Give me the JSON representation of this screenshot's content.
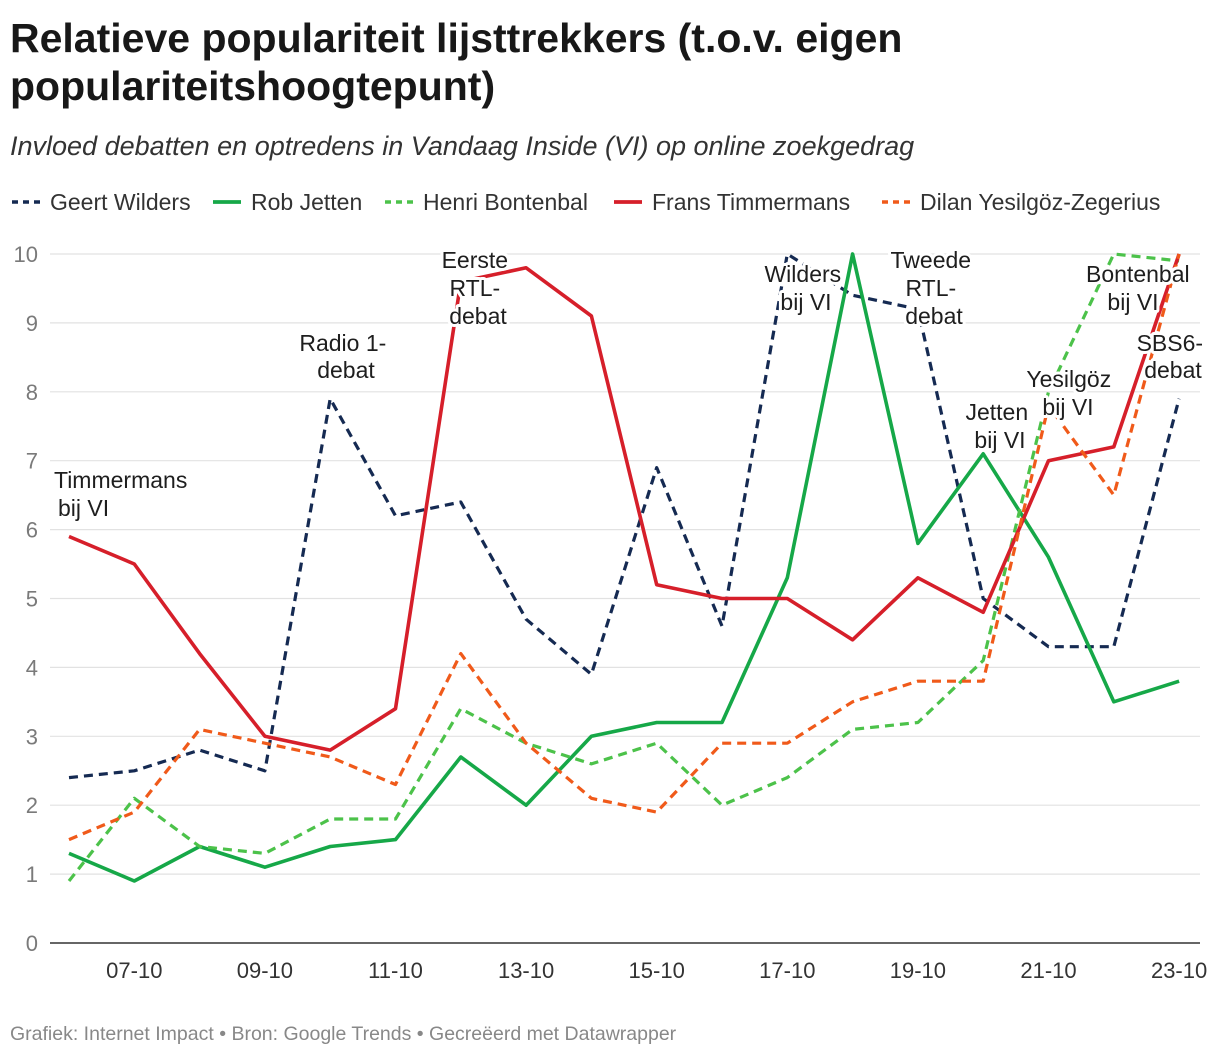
{
  "chart_data": {
    "type": "line",
    "title": "Relatieve populariteit lijsttrekkers (t.o.v. eigen populariteitshoogtepunt)",
    "subtitle": "Invloed debatten en optredens in Vandaag Inside (VI) op online zoekgedrag",
    "xlabel": "",
    "ylabel": "",
    "x": [
      6,
      7,
      8,
      9,
      10,
      11,
      12,
      13,
      14,
      15,
      16,
      17,
      18,
      19,
      20,
      21,
      22,
      23
    ],
    "x_ticks": [
      {
        "day": 7,
        "label": "07-10"
      },
      {
        "day": 9,
        "label": "09-10"
      },
      {
        "day": 11,
        "label": "11-10"
      },
      {
        "day": 13,
        "label": "13-10"
      },
      {
        "day": 15,
        "label": "15-10"
      },
      {
        "day": 17,
        "label": "17-10"
      },
      {
        "day": 19,
        "label": "19-10"
      },
      {
        "day": 21,
        "label": "21-10"
      },
      {
        "day": 23,
        "label": "23-10"
      }
    ],
    "ylim": [
      0,
      10
    ],
    "y_ticks": [
      0,
      1,
      2,
      3,
      4,
      5,
      6,
      7,
      8,
      9,
      10
    ],
    "grid": "horizontal",
    "legend": "top",
    "series": [
      {
        "name": "Geert Wilders",
        "color": "#152a52",
        "style": "dashed",
        "values": [
          2.4,
          2.5,
          2.8,
          2.5,
          7.9,
          6.2,
          6.4,
          4.7,
          3.9,
          6.9,
          4.6,
          10.0,
          9.4,
          9.2,
          5.0,
          4.3,
          4.3,
          7.9
        ]
      },
      {
        "name": "Rob Jetten",
        "color": "#16a848",
        "style": "solid",
        "values": [
          1.3,
          0.9,
          1.4,
          1.1,
          1.4,
          1.5,
          2.7,
          2.0,
          3.0,
          3.2,
          3.2,
          5.3,
          10.0,
          5.8,
          7.1,
          5.6,
          3.5,
          3.8
        ]
      },
      {
        "name": "Henri Bontenbal",
        "color": "#4cc24a",
        "style": "dashed",
        "values": [
          0.9,
          2.1,
          1.4,
          1.3,
          1.8,
          1.8,
          3.4,
          2.9,
          2.6,
          2.9,
          2.0,
          2.4,
          3.1,
          3.2,
          4.1,
          8.0,
          10.0,
          9.9
        ]
      },
      {
        "name": "Frans Timmermans",
        "color": "#d61f2a",
        "style": "solid",
        "values": [
          5.9,
          5.5,
          4.2,
          3.0,
          2.8,
          3.4,
          9.6,
          9.8,
          9.1,
          5.2,
          5.0,
          5.0,
          4.4,
          5.3,
          4.8,
          7.0,
          7.2,
          10.0
        ]
      },
      {
        "name": "Dilan Yesilgöz-Zegerius",
        "color": "#f05a1a",
        "style": "dashed",
        "values": [
          1.5,
          1.9,
          3.1,
          2.9,
          2.7,
          2.3,
          4.2,
          2.9,
          2.1,
          1.9,
          2.9,
          2.9,
          3.5,
          3.8,
          3.8,
          7.8,
          6.5,
          10.0
        ]
      }
    ],
    "annotations": [
      {
        "lines": [
          "Timmermans",
          "bij VI"
        ]
      },
      {
        "lines": [
          "Radio 1-",
          "debat"
        ]
      },
      {
        "lines": [
          "Eerste",
          "RTL-",
          "debat"
        ]
      },
      {
        "lines": [
          "Wilders",
          "bij VI"
        ]
      },
      {
        "lines": [
          "Tweede",
          "RTL-",
          "debat"
        ]
      },
      {
        "lines": [
          "Jetten",
          "bij VI"
        ]
      },
      {
        "lines": [
          "Yesilgöz",
          "bij VI"
        ]
      },
      {
        "lines": [
          "Bontenbal",
          "bij VI"
        ]
      },
      {
        "lines": [
          "SBS6-",
          "debat"
        ]
      }
    ]
  },
  "footer": {
    "credit": "Grafiek: Internet Impact",
    "source": "Bron: Google Trends",
    "made_with": "Gecreëerd met Datawrapper",
    "separator": "•"
  }
}
